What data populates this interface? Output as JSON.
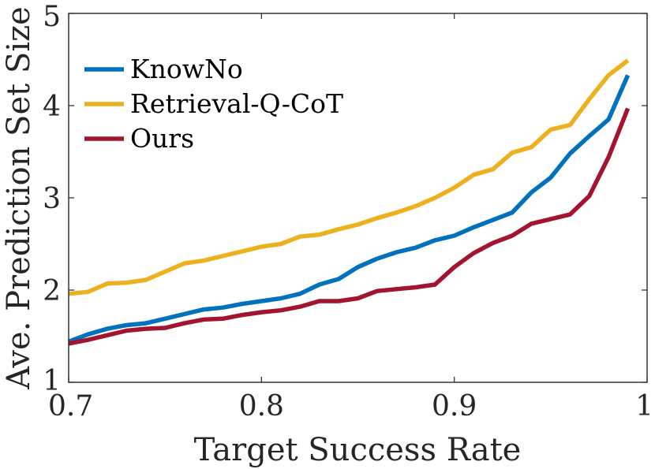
{
  "chart_data": {
    "type": "line",
    "title": "",
    "xlabel": "Target Success Rate",
    "ylabel": "Ave. Prediction Set Size",
    "xlim": [
      0.7,
      1.0
    ],
    "ylim": [
      1,
      5
    ],
    "grid": false,
    "legend_position": "top-left",
    "x_ticks": [
      0.7,
      0.8,
      0.9,
      1.0
    ],
    "x_tick_labels": [
      "0.7",
      "0.8",
      "0.9",
      "1"
    ],
    "y_ticks": [
      1,
      2,
      3,
      4,
      5
    ],
    "y_tick_labels": [
      "1",
      "2",
      "3",
      "4",
      "5"
    ],
    "x": [
      0.7,
      0.71,
      0.72,
      0.73,
      0.74,
      0.75,
      0.76,
      0.77,
      0.78,
      0.79,
      0.8,
      0.81,
      0.82,
      0.83,
      0.84,
      0.85,
      0.86,
      0.87,
      0.88,
      0.89,
      0.9,
      0.91,
      0.92,
      0.93,
      0.94,
      0.95,
      0.96,
      0.97,
      0.98,
      0.99
    ],
    "series": [
      {
        "name": "KnowNo",
        "color": "#0072BD",
        "values": [
          1.44,
          1.52,
          1.58,
          1.62,
          1.64,
          1.69,
          1.74,
          1.79,
          1.81,
          1.85,
          1.88,
          1.91,
          1.96,
          2.06,
          2.12,
          2.25,
          2.34,
          2.41,
          2.46,
          2.54,
          2.59,
          2.68,
          2.76,
          2.84,
          3.06,
          3.22,
          3.48,
          3.67,
          3.85,
          4.33
        ]
      },
      {
        "name": "Retrieval-Q-CoT",
        "color": "#EDB120",
        "values": [
          1.96,
          1.98,
          2.07,
          2.08,
          2.11,
          2.2,
          2.29,
          2.32,
          2.37,
          2.42,
          2.47,
          2.5,
          2.58,
          2.6,
          2.66,
          2.71,
          2.78,
          2.84,
          2.91,
          3.0,
          3.11,
          3.25,
          3.31,
          3.49,
          3.55,
          3.74,
          3.79,
          4.07,
          4.33,
          4.49
        ]
      },
      {
        "name": "Ours",
        "color": "#A2142F",
        "values": [
          1.42,
          1.46,
          1.51,
          1.56,
          1.58,
          1.59,
          1.64,
          1.68,
          1.69,
          1.73,
          1.76,
          1.78,
          1.82,
          1.88,
          1.88,
          1.91,
          1.99,
          2.01,
          2.03,
          2.06,
          2.25,
          2.4,
          2.51,
          2.59,
          2.72,
          2.77,
          2.82,
          3.02,
          3.44,
          3.97
        ]
      }
    ]
  }
}
